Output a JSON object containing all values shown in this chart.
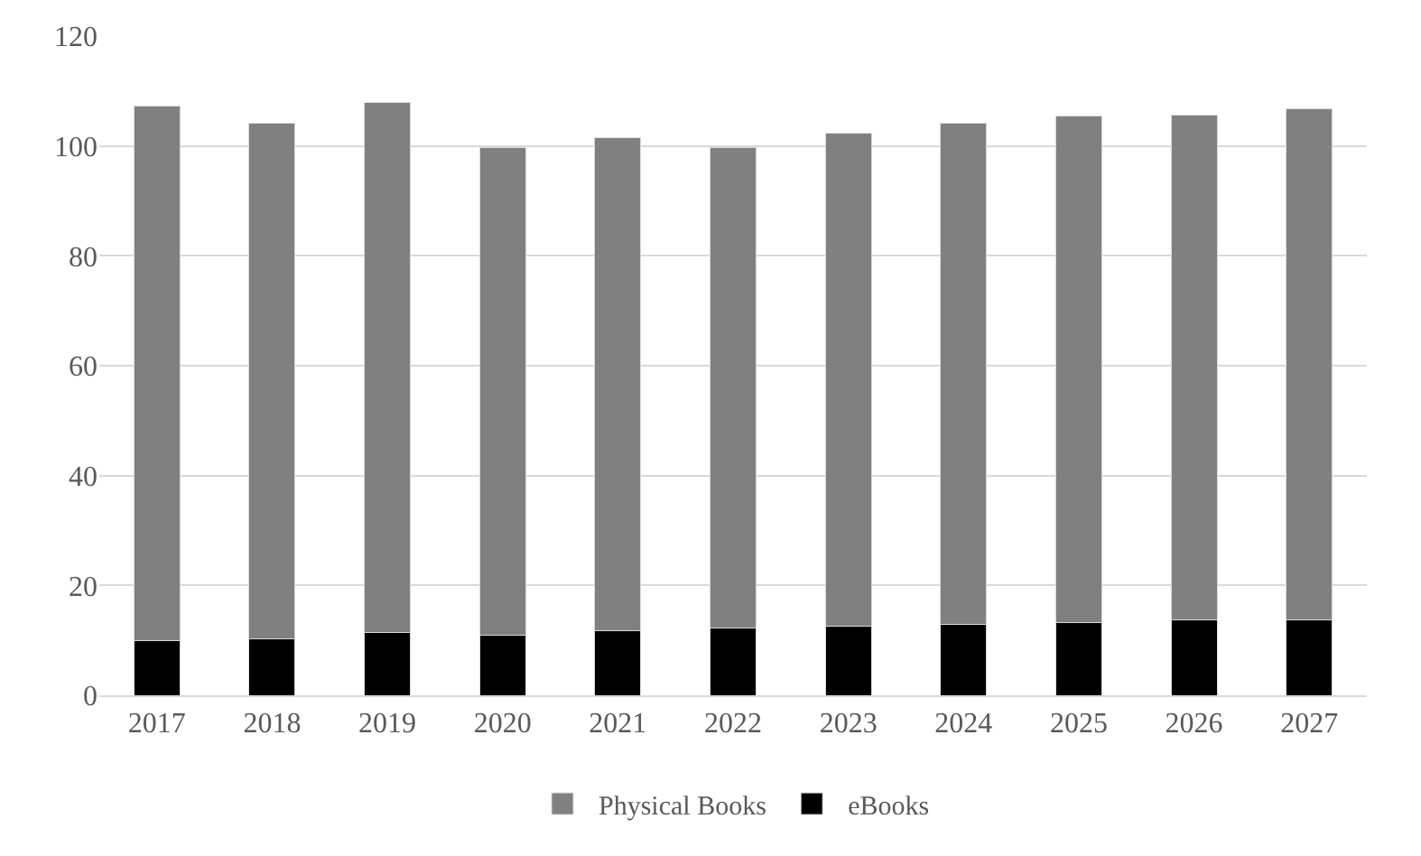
{
  "chart_data": {
    "type": "bar",
    "stacked": true,
    "categories": [
      "2017",
      "2018",
      "2019",
      "2020",
      "2021",
      "2022",
      "2023",
      "2024",
      "2025",
      "2026",
      "2027"
    ],
    "series": [
      {
        "name": "eBooks",
        "color": "#000000",
        "values": [
          9.9,
          10.3,
          11.4,
          11.0,
          11.8,
          12.2,
          12.5,
          12.9,
          13.3,
          13.7,
          13.7
        ]
      },
      {
        "name": "Physical Books",
        "color": "#808080",
        "values": [
          97.4,
          93.9,
          96.5,
          88.7,
          89.7,
          87.5,
          89.9,
          91.3,
          92.1,
          92.0,
          93.1
        ]
      }
    ],
    "ylim": [
      0,
      120
    ],
    "yticks": [
      0,
      20,
      40,
      60,
      80,
      100,
      120
    ],
    "grid": "y",
    "legend": "bottom"
  }
}
